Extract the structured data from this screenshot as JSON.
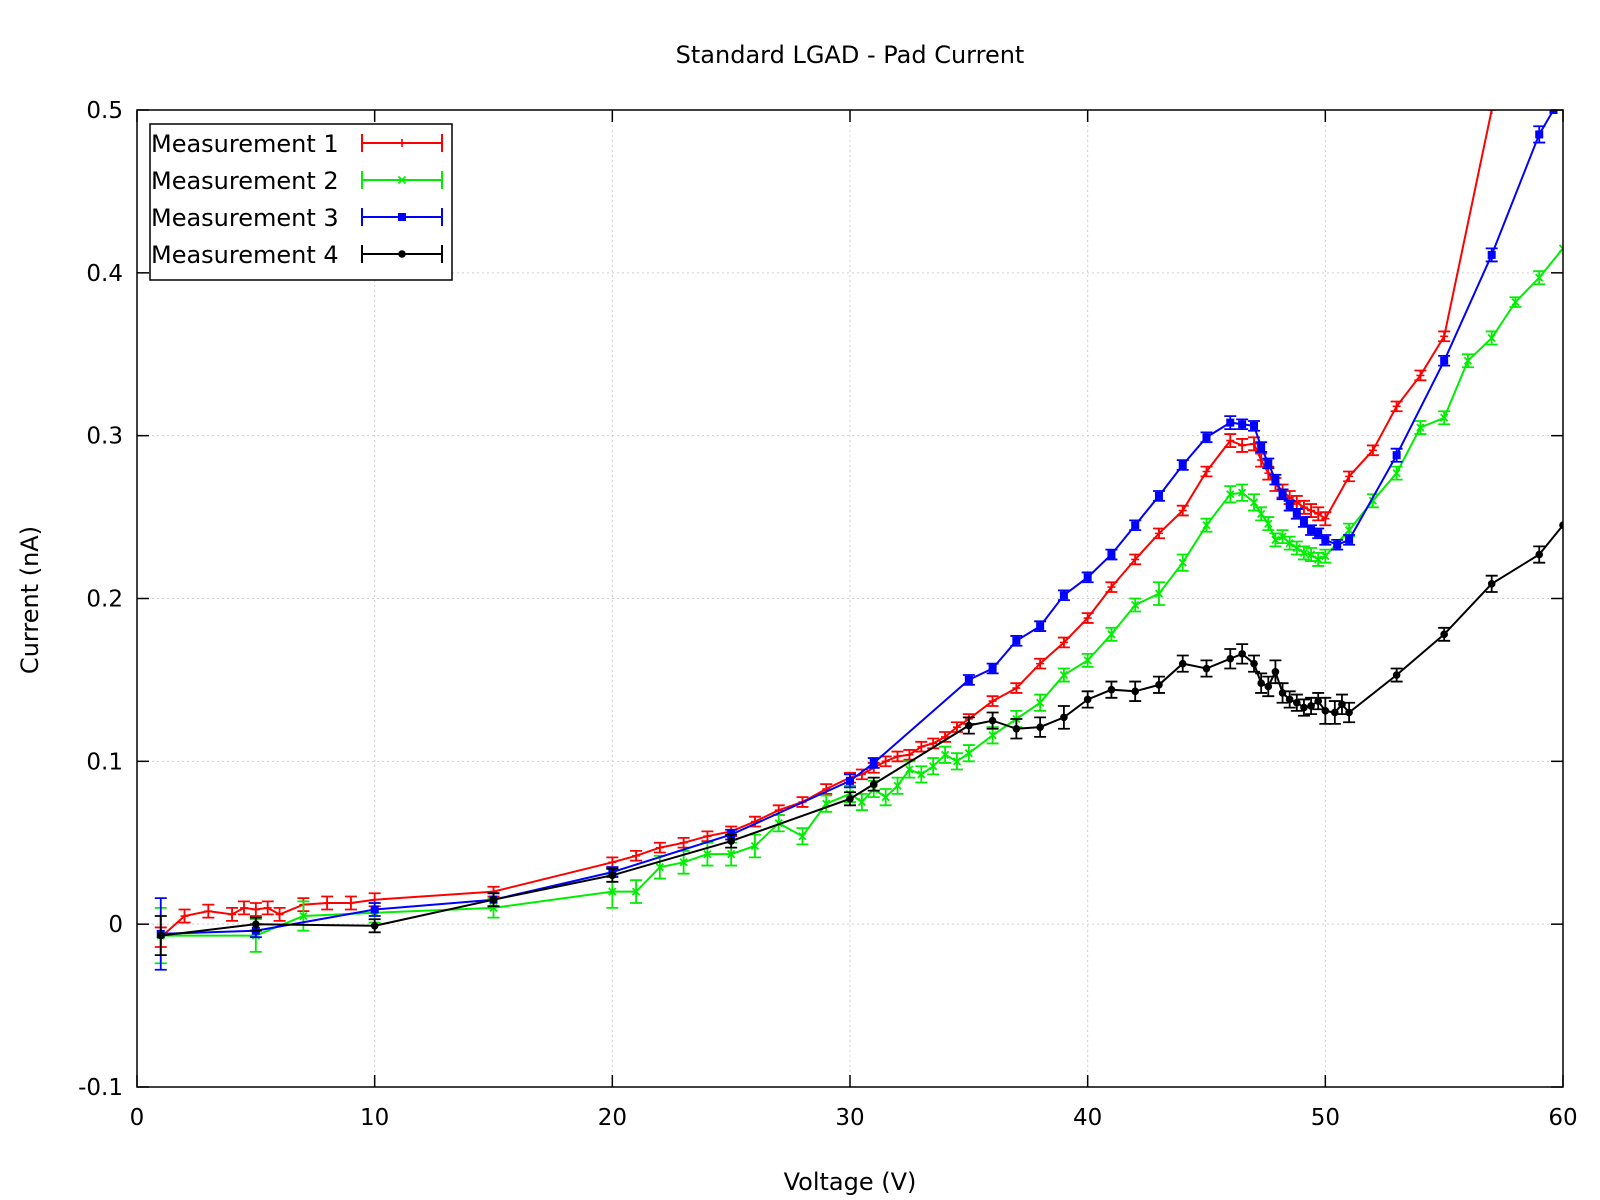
{
  "chart_data": {
    "type": "line",
    "title": "Standard LGAD - Pad Current",
    "xlabel": "Voltage (V)",
    "ylabel": "Current (nA)",
    "xlim": [
      0,
      60
    ],
    "ylim": [
      -0.1,
      0.5
    ],
    "xticks": [
      0,
      10,
      20,
      30,
      40,
      50,
      60
    ],
    "yticks": [
      -0.1,
      0,
      0.1,
      0.2,
      0.3,
      0.4,
      0.5
    ],
    "xtick_labels": [
      "0",
      "10",
      "20",
      "30",
      "40",
      "50",
      "60"
    ],
    "ytick_labels": [
      "-0.1",
      "0",
      "0.1",
      "0.2",
      "0.3",
      "0.4",
      "0.5"
    ],
    "grid": true,
    "legend_position": "top-left",
    "series": [
      {
        "name": "Measurement 1",
        "color": "#ff0000",
        "marker": "plus",
        "points": [
          [
            1,
            -0.008,
            0.006
          ],
          [
            2,
            0.005,
            0.004
          ],
          [
            3,
            0.008,
            0.004
          ],
          [
            4,
            0.006,
            0.004
          ],
          [
            4.5,
            0.01,
            0.004
          ],
          [
            5,
            0.009,
            0.004
          ],
          [
            5.5,
            0.01,
            0.004
          ],
          [
            6,
            0.006,
            0.004
          ],
          [
            7,
            0.012,
            0.004
          ],
          [
            8,
            0.013,
            0.004
          ],
          [
            9,
            0.013,
            0.004
          ],
          [
            10,
            0.015,
            0.004
          ],
          [
            15,
            0.02,
            0.003
          ],
          [
            20,
            0.038,
            0.003
          ],
          [
            21,
            0.042,
            0.003
          ],
          [
            22,
            0.047,
            0.003
          ],
          [
            23,
            0.05,
            0.003
          ],
          [
            24,
            0.054,
            0.003
          ],
          [
            25,
            0.057,
            0.003
          ],
          [
            26,
            0.063,
            0.003
          ],
          [
            27,
            0.07,
            0.003
          ],
          [
            28,
            0.075,
            0.003
          ],
          [
            29,
            0.083,
            0.003
          ],
          [
            30,
            0.09,
            0.003
          ],
          [
            30.5,
            0.092,
            0.003
          ],
          [
            31,
            0.096,
            0.003
          ],
          [
            31.5,
            0.1,
            0.003
          ],
          [
            32,
            0.103,
            0.003
          ],
          [
            32.5,
            0.104,
            0.003
          ],
          [
            33,
            0.109,
            0.003
          ],
          [
            33.5,
            0.111,
            0.003
          ],
          [
            34,
            0.115,
            0.003
          ],
          [
            34.5,
            0.121,
            0.003
          ],
          [
            35,
            0.126,
            0.003
          ],
          [
            36,
            0.137,
            0.003
          ],
          [
            37,
            0.145,
            0.003
          ],
          [
            38,
            0.16,
            0.003
          ],
          [
            39,
            0.173,
            0.003
          ],
          [
            40,
            0.188,
            0.003
          ],
          [
            41,
            0.207,
            0.003
          ],
          [
            42,
            0.224,
            0.003
          ],
          [
            43,
            0.24,
            0.003
          ],
          [
            44,
            0.254,
            0.003
          ],
          [
            45,
            0.278,
            0.003
          ],
          [
            46,
            0.297,
            0.004
          ],
          [
            46.5,
            0.294,
            0.004
          ],
          [
            47,
            0.295,
            0.004
          ],
          [
            47.3,
            0.285,
            0.004
          ],
          [
            47.6,
            0.277,
            0.004
          ],
          [
            47.9,
            0.27,
            0.004
          ],
          [
            48.2,
            0.266,
            0.004
          ],
          [
            48.5,
            0.262,
            0.004
          ],
          [
            48.8,
            0.259,
            0.004
          ],
          [
            49.1,
            0.256,
            0.004
          ],
          [
            49.4,
            0.254,
            0.004
          ],
          [
            49.7,
            0.252,
            0.004
          ],
          [
            50,
            0.249,
            0.004
          ],
          [
            51,
            0.275,
            0.003
          ],
          [
            52,
            0.291,
            0.003
          ],
          [
            53,
            0.318,
            0.003
          ],
          [
            54,
            0.337,
            0.003
          ],
          [
            55,
            0.361,
            0.003
          ],
          [
            57,
            0.5,
            0
          ]
        ]
      },
      {
        "name": "Measurement 2",
        "color": "#00ee00",
        "marker": "cross",
        "points": [
          [
            1,
            -0.007,
            0.017
          ],
          [
            5,
            -0.007,
            0.01
          ],
          [
            7,
            0.005,
            0.009
          ],
          [
            10,
            0.007,
            0.006
          ],
          [
            15,
            0.01,
            0.006
          ],
          [
            20,
            0.02,
            0.01
          ],
          [
            21,
            0.02,
            0.007
          ],
          [
            22,
            0.035,
            0.007
          ],
          [
            23,
            0.038,
            0.007
          ],
          [
            24,
            0.043,
            0.007
          ],
          [
            25,
            0.043,
            0.007
          ],
          [
            26,
            0.048,
            0.007
          ],
          [
            27,
            0.062,
            0.005
          ],
          [
            28,
            0.054,
            0.005
          ],
          [
            29,
            0.074,
            0.005
          ],
          [
            30,
            0.08,
            0.005
          ],
          [
            30.5,
            0.075,
            0.005
          ],
          [
            31,
            0.083,
            0.005
          ],
          [
            31.5,
            0.078,
            0.005
          ],
          [
            32,
            0.085,
            0.005
          ],
          [
            32.5,
            0.095,
            0.005
          ],
          [
            33,
            0.092,
            0.005
          ],
          [
            33.5,
            0.097,
            0.005
          ],
          [
            34,
            0.104,
            0.005
          ],
          [
            34.5,
            0.1,
            0.005
          ],
          [
            35,
            0.105,
            0.005
          ],
          [
            36,
            0.116,
            0.005
          ],
          [
            37,
            0.126,
            0.005
          ],
          [
            38,
            0.136,
            0.005
          ],
          [
            39,
            0.153,
            0.004
          ],
          [
            40,
            0.162,
            0.004
          ],
          [
            41,
            0.178,
            0.004
          ],
          [
            42,
            0.196,
            0.004
          ],
          [
            43,
            0.203,
            0.007
          ],
          [
            44,
            0.222,
            0.005
          ],
          [
            45,
            0.245,
            0.004
          ],
          [
            46,
            0.264,
            0.005
          ],
          [
            46.5,
            0.265,
            0.005
          ],
          [
            47,
            0.259,
            0.005
          ],
          [
            47.3,
            0.252,
            0.004
          ],
          [
            47.6,
            0.246,
            0.004
          ],
          [
            47.9,
            0.236,
            0.004
          ],
          [
            48.2,
            0.238,
            0.004
          ],
          [
            48.5,
            0.234,
            0.004
          ],
          [
            48.8,
            0.231,
            0.004
          ],
          [
            49.1,
            0.228,
            0.004
          ],
          [
            49.4,
            0.227,
            0.004
          ],
          [
            49.7,
            0.224,
            0.004
          ],
          [
            50,
            0.226,
            0.004
          ],
          [
            51,
            0.242,
            0.004
          ],
          [
            52,
            0.26,
            0.004
          ],
          [
            53,
            0.277,
            0.004
          ],
          [
            54,
            0.305,
            0.004
          ],
          [
            55,
            0.311,
            0.004
          ],
          [
            56,
            0.346,
            0.004
          ],
          [
            57,
            0.36,
            0.004
          ],
          [
            58,
            0.382,
            0.003
          ],
          [
            59,
            0.397,
            0.004
          ],
          [
            60,
            0.415,
            0
          ]
        ]
      },
      {
        "name": "Measurement 3",
        "color": "#0000ff",
        "marker": "square",
        "points": [
          [
            1,
            -0.006,
            0.022
          ],
          [
            5,
            -0.004,
            0.004
          ],
          [
            10,
            0.009,
            0.004
          ],
          [
            15,
            0.015,
            0.004
          ],
          [
            20,
            0.032,
            0.003
          ],
          [
            25,
            0.055,
            0.003
          ],
          [
            30,
            0.088,
            0.004
          ],
          [
            31,
            0.099,
            0.003
          ],
          [
            35,
            0.15,
            0.003
          ],
          [
            36,
            0.157,
            0.003
          ],
          [
            37,
            0.174,
            0.003
          ],
          [
            38,
            0.183,
            0.003
          ],
          [
            39,
            0.202,
            0.003
          ],
          [
            40,
            0.213,
            0.003
          ],
          [
            41,
            0.227,
            0.003
          ],
          [
            42,
            0.245,
            0.003
          ],
          [
            43,
            0.263,
            0.003
          ],
          [
            44,
            0.282,
            0.003
          ],
          [
            45,
            0.299,
            0.003
          ],
          [
            46,
            0.308,
            0.004
          ],
          [
            46.5,
            0.307,
            0.003
          ],
          [
            47,
            0.306,
            0.003
          ],
          [
            47.3,
            0.293,
            0.003
          ],
          [
            47.6,
            0.283,
            0.003
          ],
          [
            47.9,
            0.273,
            0.003
          ],
          [
            48.2,
            0.264,
            0.003
          ],
          [
            48.5,
            0.257,
            0.003
          ],
          [
            48.8,
            0.252,
            0.003
          ],
          [
            49.1,
            0.247,
            0.003
          ],
          [
            49.4,
            0.242,
            0.003
          ],
          [
            49.7,
            0.24,
            0.003
          ],
          [
            50,
            0.236,
            0.003
          ],
          [
            50.5,
            0.233,
            0.003
          ],
          [
            51,
            0.236,
            0.003
          ],
          [
            53,
            0.288,
            0.004
          ],
          [
            55,
            0.346,
            0.003
          ],
          [
            57,
            0.411,
            0.004
          ],
          [
            59,
            0.485,
            0.005
          ],
          [
            59.6,
            0.5,
            0
          ]
        ]
      },
      {
        "name": "Measurement 4",
        "color": "#000000",
        "marker": "circle",
        "points": [
          [
            1,
            -0.007,
            0.012
          ],
          [
            5,
            0,
            0.004
          ],
          [
            10,
            -0.001,
            0.004
          ],
          [
            15,
            0.015,
            0.004
          ],
          [
            20,
            0.03,
            0.004
          ],
          [
            25,
            0.051,
            0.004
          ],
          [
            30,
            0.077,
            0.004
          ],
          [
            31,
            0.086,
            0.004
          ],
          [
            35,
            0.122,
            0.005
          ],
          [
            36,
            0.125,
            0.005
          ],
          [
            37,
            0.12,
            0.006
          ],
          [
            38,
            0.121,
            0.006
          ],
          [
            39,
            0.127,
            0.007
          ],
          [
            40,
            0.138,
            0.005
          ],
          [
            41,
            0.144,
            0.005
          ],
          [
            42,
            0.143,
            0.006
          ],
          [
            43,
            0.147,
            0.005
          ],
          [
            44,
            0.16,
            0.005
          ],
          [
            45,
            0.157,
            0.005
          ],
          [
            46,
            0.163,
            0.006
          ],
          [
            46.5,
            0.166,
            0.006
          ],
          [
            47,
            0.16,
            0.005
          ],
          [
            47.3,
            0.148,
            0.006
          ],
          [
            47.6,
            0.146,
            0.006
          ],
          [
            47.9,
            0.155,
            0.007
          ],
          [
            48.2,
            0.142,
            0.006
          ],
          [
            48.5,
            0.138,
            0.005
          ],
          [
            48.8,
            0.136,
            0.005
          ],
          [
            49.1,
            0.133,
            0.005
          ],
          [
            49.4,
            0.134,
            0.005
          ],
          [
            49.7,
            0.137,
            0.005
          ],
          [
            50,
            0.131,
            0.008
          ],
          [
            50.4,
            0.13,
            0.007
          ],
          [
            50.7,
            0.135,
            0.006
          ],
          [
            51,
            0.13,
            0.006
          ],
          [
            53,
            0.153,
            0.004
          ],
          [
            55,
            0.178,
            0.004
          ],
          [
            57,
            0.209,
            0.005
          ],
          [
            59,
            0.227,
            0.005
          ],
          [
            60,
            0.245,
            0
          ]
        ]
      }
    ]
  }
}
